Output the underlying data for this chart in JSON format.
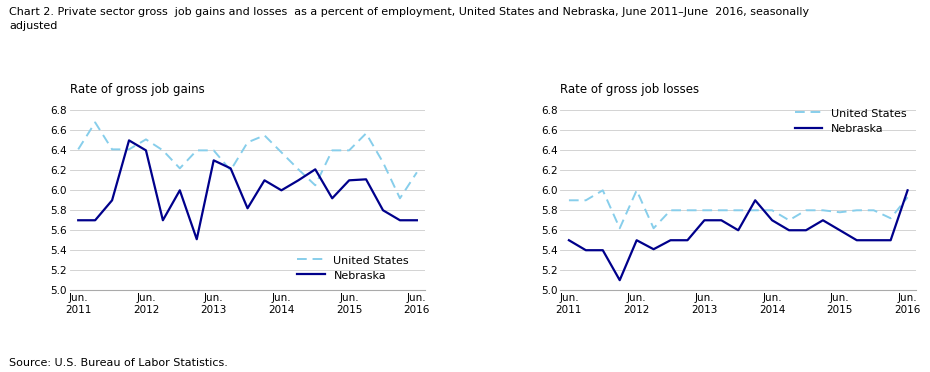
{
  "title_line1": "Chart 2. Private sector gross  job gains and losses  as a percent of employment, United States and Nebraska, June 2011–June  2016, seasonally",
  "title_line2": "adjusted",
  "source": "Source: U.S. Bureau of Labor Statistics.",
  "chart1_ylabel": "Rate of gross job gains",
  "chart2_ylabel": "Rate of gross job losses",
  "x_labels": [
    "Jun.\n2011",
    "Jun.\n2012",
    "Jun.\n2013",
    "Jun.\n2014",
    "Jun.\n2015",
    "Jun.\n2016"
  ],
  "x_positions": [
    0,
    4,
    8,
    12,
    16,
    20
  ],
  "gains_us": [
    6.41,
    6.68,
    6.41,
    6.41,
    6.51,
    6.4,
    6.22,
    6.4,
    6.4,
    6.2,
    6.48,
    6.55,
    6.38,
    6.21,
    6.05,
    6.4,
    6.4,
    6.57,
    6.28,
    5.92,
    6.18
  ],
  "gains_ne": [
    5.7,
    5.7,
    5.9,
    6.5,
    6.4,
    5.7,
    6.0,
    5.51,
    6.3,
    6.22,
    5.82,
    6.1,
    6.0,
    6.1,
    6.21,
    5.92,
    6.1,
    6.11,
    5.8,
    5.7,
    5.7
  ],
  "losses_us": [
    5.9,
    5.9,
    6.0,
    5.62,
    6.0,
    5.62,
    5.8,
    5.8,
    5.8,
    5.8,
    5.8,
    5.8,
    5.8,
    5.7,
    5.8,
    5.8,
    5.78,
    5.8,
    5.8,
    5.72,
    5.93
  ],
  "losses_ne": [
    5.5,
    5.4,
    5.4,
    5.1,
    5.5,
    5.41,
    5.5,
    5.5,
    5.7,
    5.7,
    5.6,
    5.9,
    5.7,
    5.6,
    5.6,
    5.7,
    5.6,
    5.5,
    5.5,
    5.5,
    6.0
  ],
  "us_color": "#87ceeb",
  "ne_color": "#00008b",
  "yticks": [
    5.0,
    5.2,
    5.4,
    5.6,
    5.8,
    6.0,
    6.2,
    6.4,
    6.6,
    6.8
  ],
  "n_points": 21
}
